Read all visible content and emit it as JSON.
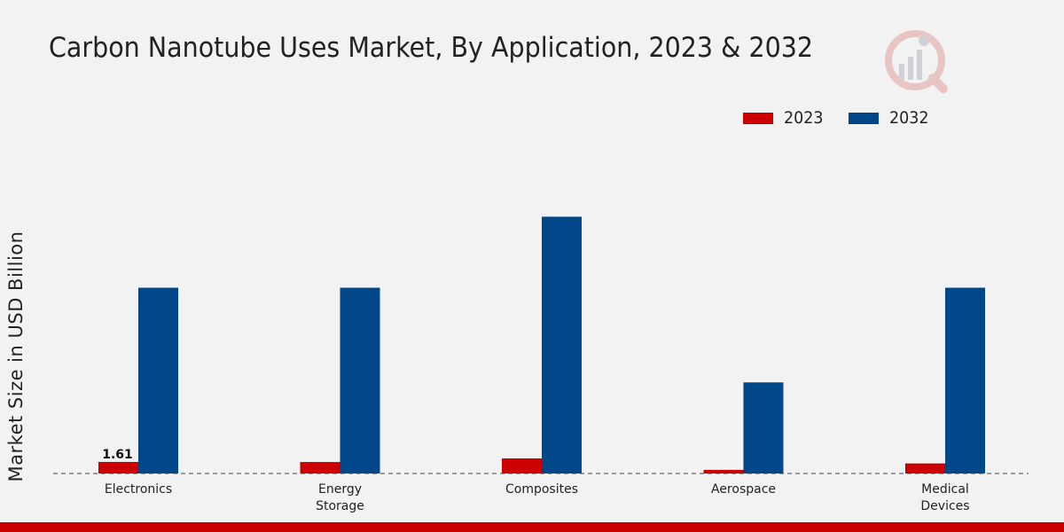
{
  "chart_data": {
    "type": "bar",
    "title": "Carbon Nanotube Uses Market, By Application, 2023 & 2032",
    "xlabel": "",
    "ylabel": "Market Size in USD Billion",
    "categories": [
      "Electronics",
      "Energy\nStorage",
      "Composites",
      "Aerospace",
      "Medical\nDevices"
    ],
    "series": [
      {
        "name": "2023",
        "color": "#cc0000",
        "values": [
          1.61,
          1.6,
          2.1,
          0.5,
          1.4
        ]
      },
      {
        "name": "2032",
        "color": "#00478a",
        "values": [
          25.9,
          25.9,
          35.8,
          12.7,
          25.9
        ]
      }
    ],
    "data_labels": [
      {
        "series": "2023",
        "category": "Electronics",
        "text": "1.61"
      }
    ],
    "ylim": [
      0,
      45
    ],
    "grid": false,
    "legend_position": "top-right"
  },
  "colors": {
    "accent": "#cc0000",
    "series_2023": "#cc0000",
    "series_2032": "#00478a"
  },
  "watermark": {
    "icon": "bar-chart-logo-icon"
  }
}
